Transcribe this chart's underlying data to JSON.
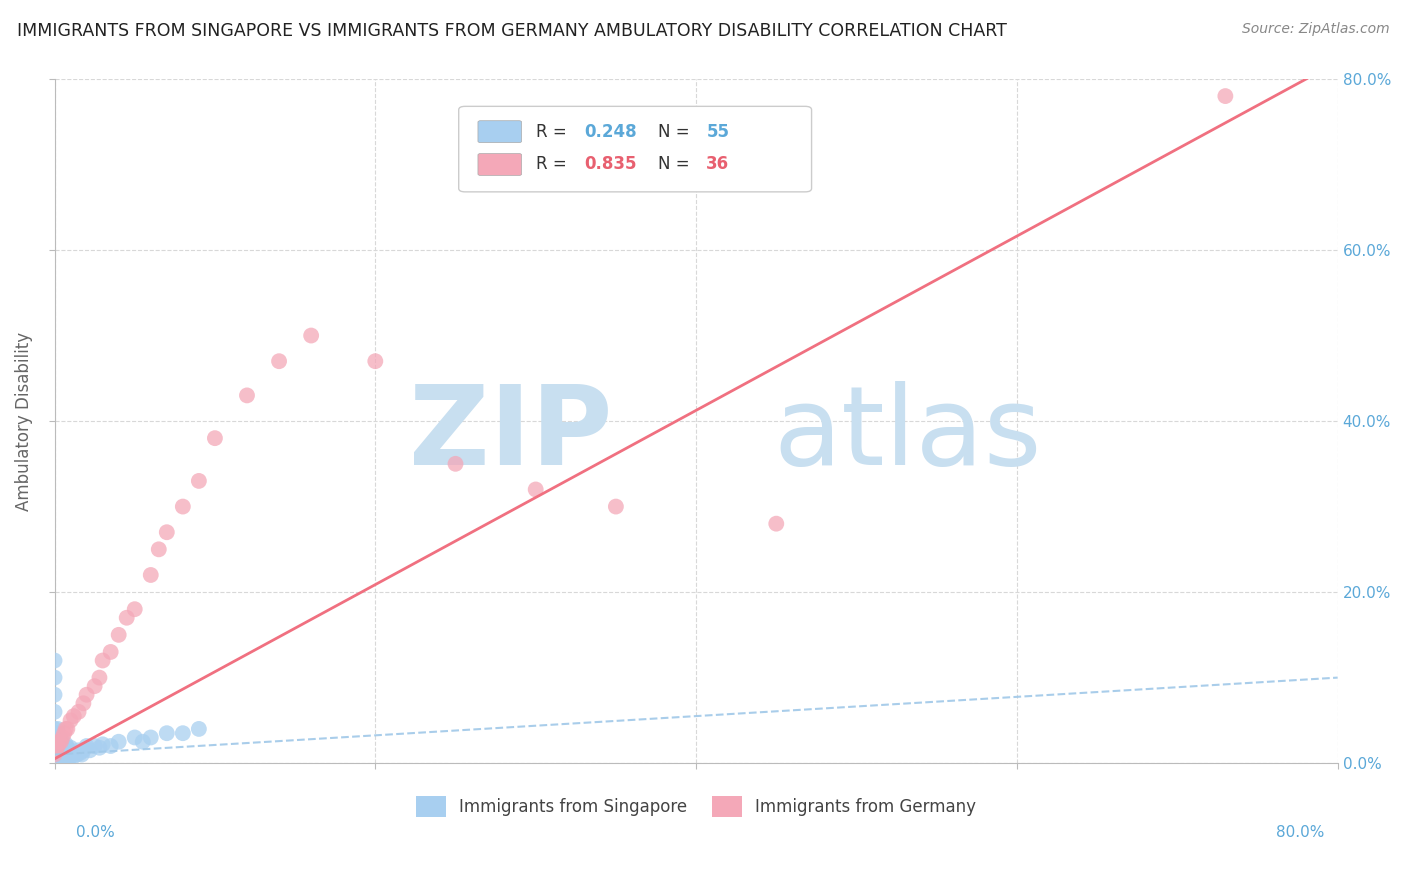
{
  "title": "IMMIGRANTS FROM SINGAPORE VS IMMIGRANTS FROM GERMANY AMBULATORY DISABILITY CORRELATION CHART",
  "source": "Source: ZipAtlas.com",
  "ylabel": "Ambulatory Disability",
  "legend_singapore": "Immigrants from Singapore",
  "legend_germany": "Immigrants from Germany",
  "R_singapore": 0.248,
  "N_singapore": 55,
  "R_germany": 0.835,
  "N_germany": 36,
  "color_singapore": "#a8cff0",
  "color_germany": "#f4a8b8",
  "color_singapore_line": "#a0c8e8",
  "color_germany_line": "#f07080",
  "color_text_blue": "#5ba8d8",
  "color_text_pink": "#e86070",
  "background_color": "#ffffff",
  "grid_color": "#d8d8d8",
  "watermark_zip": "ZIP",
  "watermark_atlas": "atlas",
  "watermark_color": "#c8dff0",
  "xlim": [
    0,
    0.8
  ],
  "ylim": [
    0,
    0.8
  ],
  "singapore_x": [
    0.0,
    0.0,
    0.0,
    0.0,
    0.0,
    0.0,
    0.001,
    0.001,
    0.001,
    0.001,
    0.002,
    0.002,
    0.002,
    0.002,
    0.003,
    0.003,
    0.003,
    0.004,
    0.004,
    0.004,
    0.005,
    0.005,
    0.005,
    0.006,
    0.006,
    0.007,
    0.007,
    0.007,
    0.008,
    0.008,
    0.009,
    0.009,
    0.01,
    0.01,
    0.011,
    0.012,
    0.013,
    0.014,
    0.015,
    0.016,
    0.017,
    0.018,
    0.02,
    0.022,
    0.025,
    0.028,
    0.03,
    0.035,
    0.04,
    0.05,
    0.055,
    0.06,
    0.07,
    0.08,
    0.09
  ],
  "singapore_y": [
    0.02,
    0.04,
    0.06,
    0.08,
    0.1,
    0.12,
    0.005,
    0.015,
    0.025,
    0.035,
    0.01,
    0.02,
    0.03,
    0.04,
    0.005,
    0.015,
    0.025,
    0.008,
    0.018,
    0.028,
    0.005,
    0.012,
    0.022,
    0.01,
    0.02,
    0.005,
    0.012,
    0.022,
    0.008,
    0.018,
    0.005,
    0.015,
    0.008,
    0.018,
    0.01,
    0.008,
    0.012,
    0.01,
    0.015,
    0.012,
    0.01,
    0.015,
    0.02,
    0.015,
    0.02,
    0.018,
    0.022,
    0.02,
    0.025,
    0.03,
    0.025,
    0.03,
    0.035,
    0.035,
    0.04
  ],
  "germany_x": [
    0.0,
    0.001,
    0.002,
    0.003,
    0.004,
    0.005,
    0.006,
    0.007,
    0.008,
    0.01,
    0.012,
    0.015,
    0.018,
    0.02,
    0.025,
    0.028,
    0.03,
    0.035,
    0.04,
    0.045,
    0.05,
    0.06,
    0.065,
    0.07,
    0.08,
    0.09,
    0.1,
    0.12,
    0.14,
    0.16,
    0.2,
    0.25,
    0.3,
    0.35,
    0.45,
    0.73
  ],
  "germany_y": [
    0.01,
    0.015,
    0.02,
    0.025,
    0.025,
    0.03,
    0.035,
    0.04,
    0.04,
    0.05,
    0.055,
    0.06,
    0.07,
    0.08,
    0.09,
    0.1,
    0.12,
    0.13,
    0.15,
    0.17,
    0.18,
    0.22,
    0.25,
    0.27,
    0.3,
    0.33,
    0.38,
    0.43,
    0.47,
    0.5,
    0.47,
    0.35,
    0.32,
    0.3,
    0.28,
    0.78
  ]
}
